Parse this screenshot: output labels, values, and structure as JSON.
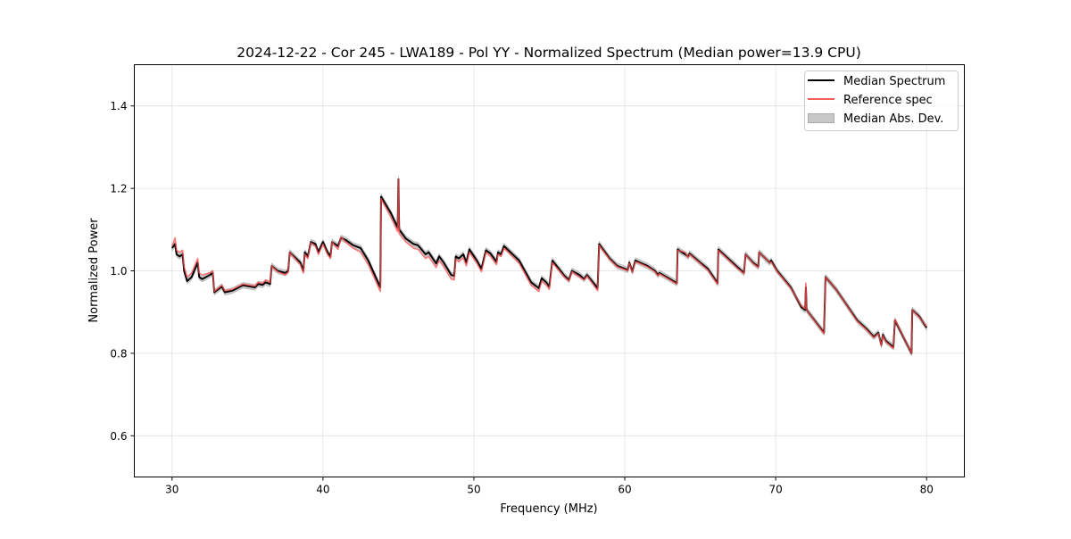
{
  "chart_data": {
    "type": "line",
    "title": "2024-12-22 - Cor 245 - LWA189 - Pol YY - Normalized Spectrum (Median power=13.9 CPU)",
    "xlabel": "Frequency (MHz)",
    "ylabel": "Normalized Power",
    "xlim": [
      27.5,
      82.5
    ],
    "ylim": [
      0.5,
      1.5
    ],
    "xticks": [
      30,
      40,
      50,
      60,
      70,
      80
    ],
    "xtick_labels": [
      "30",
      "40",
      "50",
      "60",
      "70",
      "80"
    ],
    "yticks": [
      0.6,
      0.8,
      1.0,
      1.2,
      1.4
    ],
    "ytick_labels": [
      "0.6",
      "0.8",
      "1.0",
      "1.2",
      "1.4"
    ],
    "grid": true,
    "legend": {
      "placement": "top-right",
      "entries": [
        "Median Spectrum",
        "Reference spec",
        "Median Abs. Dev."
      ]
    },
    "colors": {
      "median": "#000000",
      "reference": "#ff4d4d",
      "mad": "#bbbbbb"
    },
    "mad_typical": 0.007,
    "x": [
      30.0,
      30.2,
      30.3,
      30.5,
      30.7,
      30.8,
      31.0,
      31.3,
      31.7,
      31.8,
      32.0,
      32.5,
      32.7,
      32.8,
      33.3,
      33.5,
      34.0,
      34.7,
      35.5,
      35.7,
      36.0,
      36.2,
      36.5,
      36.6,
      37.0,
      37.5,
      37.7,
      37.8,
      38.5,
      38.7,
      38.8,
      39.0,
      39.2,
      39.5,
      39.7,
      40.0,
      40.3,
      40.5,
      40.6,
      41.0,
      41.2,
      41.5,
      42.0,
      42.5,
      43.0,
      43.8,
      43.85,
      44.5,
      44.95,
      45.0,
      45.05,
      45.5,
      46.0,
      46.3,
      46.8,
      47.0,
      47.5,
      47.7,
      48.0,
      48.5,
      48.7,
      48.8,
      49.0,
      49.3,
      49.5,
      49.7,
      50.2,
      50.5,
      50.8,
      51.1,
      51.5,
      51.6,
      51.8,
      52.0,
      53.0,
      53.8,
      54.3,
      54.5,
      54.8,
      55.0,
      55.2,
      56.0,
      56.3,
      56.5,
      57.0,
      57.3,
      57.5,
      58.2,
      58.3,
      59.0,
      59.5,
      60.0,
      60.2,
      60.3,
      60.5,
      60.7,
      61.0,
      61.5,
      62.0,
      62.2,
      62.3,
      63.0,
      63.45,
      63.5,
      64.0,
      64.2,
      64.3,
      65.0,
      65.5,
      66.15,
      66.2,
      67.5,
      67.9,
      68.0,
      68.5,
      68.85,
      68.9,
      69.6,
      69.7,
      70.1,
      71.0,
      71.7,
      71.95,
      72.0,
      72.05,
      73.2,
      73.3,
      74.0,
      75.4,
      76.0,
      76.5,
      76.8,
      77.0,
      77.1,
      77.3,
      77.8,
      77.9,
      79.0,
      79.05,
      79.5,
      80.0
    ],
    "median": [
      1.055,
      1.065,
      1.04,
      1.035,
      1.04,
      1.0,
      0.975,
      0.985,
      1.02,
      0.985,
      0.98,
      0.99,
      0.995,
      0.948,
      0.962,
      0.948,
      0.952,
      0.965,
      0.96,
      0.968,
      0.966,
      0.972,
      0.968,
      1.012,
      1.0,
      0.995,
      1.0,
      1.045,
      1.02,
      1.0,
      1.045,
      1.035,
      1.07,
      1.065,
      1.045,
      1.07,
      1.045,
      1.035,
      1.07,
      1.06,
      1.08,
      1.075,
      1.062,
      1.055,
      1.025,
      0.96,
      1.18,
      1.14,
      1.105,
      1.222,
      1.1,
      1.078,
      1.065,
      1.062,
      1.04,
      1.045,
      1.018,
      1.035,
      1.02,
      0.99,
      0.988,
      1.035,
      1.03,
      1.04,
      1.02,
      1.052,
      1.025,
      1.005,
      1.05,
      1.042,
      1.022,
      1.045,
      1.04,
      1.06,
      1.025,
      0.972,
      0.958,
      0.982,
      0.972,
      0.962,
      1.025,
      0.988,
      0.978,
      1.0,
      0.99,
      0.98,
      0.99,
      0.958,
      1.065,
      1.03,
      1.012,
      1.005,
      1.002,
      1.02,
      0.998,
      1.025,
      1.02,
      1.012,
      1.0,
      0.99,
      0.995,
      0.98,
      0.97,
      1.052,
      1.04,
      1.035,
      1.042,
      1.02,
      1.005,
      0.97,
      1.052,
      1.008,
      0.995,
      1.04,
      1.02,
      1.01,
      1.045,
      1.02,
      1.025,
      1.0,
      0.96,
      0.912,
      0.905,
      0.96,
      0.905,
      0.85,
      0.985,
      0.955,
      0.88,
      0.86,
      0.84,
      0.85,
      0.82,
      0.845,
      0.83,
      0.815,
      0.88,
      0.8,
      0.905,
      0.89,
      0.862
    ],
    "reference": [
      1.06,
      1.08,
      1.05,
      1.045,
      1.05,
      1.01,
      0.985,
      0.995,
      1.03,
      0.995,
      0.99,
      0.995,
      1.0,
      0.95,
      0.965,
      0.952,
      0.955,
      0.968,
      0.963,
      0.972,
      0.97,
      0.978,
      0.972,
      1.012,
      0.998,
      0.99,
      0.997,
      1.045,
      1.015,
      0.995,
      1.04,
      1.03,
      1.068,
      1.06,
      1.04,
      1.065,
      1.04,
      1.03,
      1.07,
      1.052,
      1.082,
      1.07,
      1.055,
      1.045,
      1.015,
      0.95,
      1.175,
      1.13,
      1.095,
      1.222,
      1.09,
      1.07,
      1.055,
      1.052,
      1.03,
      1.035,
      1.008,
      1.025,
      1.01,
      0.98,
      0.978,
      1.028,
      1.022,
      1.032,
      1.012,
      1.045,
      1.018,
      0.998,
      1.045,
      1.035,
      1.015,
      1.04,
      1.035,
      1.055,
      1.018,
      0.965,
      0.95,
      0.975,
      0.965,
      0.955,
      1.02,
      0.985,
      0.975,
      0.998,
      0.985,
      0.978,
      0.988,
      0.952,
      1.062,
      1.028,
      1.01,
      1.003,
      1.0,
      1.018,
      0.996,
      1.022,
      1.018,
      1.01,
      0.998,
      0.988,
      0.993,
      0.978,
      0.968,
      1.05,
      1.045,
      1.032,
      1.04,
      1.018,
      1.002,
      0.968,
      1.05,
      1.005,
      0.993,
      1.04,
      1.018,
      1.008,
      1.045,
      1.02,
      1.022,
      0.998,
      0.958,
      0.915,
      0.908,
      0.97,
      0.905,
      0.848,
      0.985,
      0.955,
      0.878,
      0.858,
      0.838,
      0.848,
      0.818,
      0.843,
      0.828,
      0.812,
      0.882,
      0.8,
      0.905,
      0.888,
      0.865
    ]
  }
}
